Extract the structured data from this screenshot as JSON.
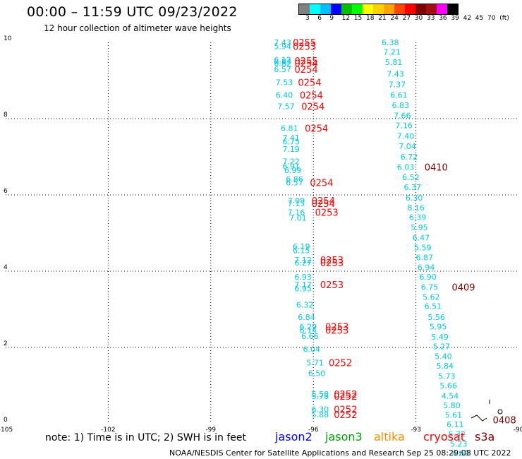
{
  "header": {
    "title": "00:00 – 11:59 UTC 09/23/2022",
    "subtitle": "12 hour collection of altimeter wave heights"
  },
  "legend": {
    "colors": [
      "#808080",
      "#00ffff",
      "#00bfff",
      "#0000ff",
      "#00c000",
      "#00ff00",
      "#ffff00",
      "#ffd000",
      "#ffa500",
      "#ff4500",
      "#ff0000",
      "#800000",
      "#a01010",
      "#ff00ff",
      "#000000"
    ],
    "labels": [
      "3",
      "6",
      "9",
      "12",
      "15",
      "18",
      "21",
      "24",
      "27",
      "30",
      "33",
      "36",
      "39",
      "42",
      "45",
      "70",
      "(ft)"
    ]
  },
  "footer": {
    "note": "note:  1) Time is in UTC;  2) SWH is in feet",
    "satellites": [
      {
        "name": "jason2",
        "color": "#0000ff"
      },
      {
        "name": "jason3",
        "color": "#00a000"
      },
      {
        "name": "altika",
        "color": "#ff8c00"
      },
      {
        "name": "cryosat",
        "color": "#ff0000"
      },
      {
        "name": "s3a",
        "color": "#800000"
      }
    ],
    "credit": "NOAA/NESDIS Center for Satellite Applications and Research    Sep 25 08:29:08 UTC 2022"
  },
  "chart_data": {
    "type": "scatter",
    "title": "00:00 – 11:59 UTC 09/23/2022",
    "xlim": [
      -105,
      -90
    ],
    "ylim": [
      0,
      10
    ],
    "x_ticks": [
      "-105",
      "-102",
      "-99",
      "-96",
      "-93",
      "-90"
    ],
    "y_ticks": [
      "0",
      "2",
      "4",
      "6",
      "8",
      "10"
    ],
    "grid": true,
    "wave_color": "#00c8e6",
    "time_color": "#ff0000",
    "time_color_dark": "#800000",
    "wave_heights": [
      {
        "x": -96.9,
        "y": 10.0,
        "v": "7.43"
      },
      {
        "x": -96.9,
        "y": 9.9,
        "v": "5.94"
      },
      {
        "x": -96.9,
        "y": 9.55,
        "v": "6.12"
      },
      {
        "x": -96.9,
        "y": 9.5,
        "v": "6.83"
      },
      {
        "x": -96.9,
        "y": 9.45,
        "v": "6.82"
      },
      {
        "x": -96.9,
        "y": 9.3,
        "v": "6.57"
      },
      {
        "x": -96.85,
        "y": 8.95,
        "v": "7.53"
      },
      {
        "x": -96.85,
        "y": 8.62,
        "v": "6.40"
      },
      {
        "x": -96.8,
        "y": 8.32,
        "v": "7.57"
      },
      {
        "x": -96.7,
        "y": 7.75,
        "v": "6.81"
      },
      {
        "x": -96.65,
        "y": 7.5,
        "v": "7.41"
      },
      {
        "x": -96.65,
        "y": 7.4,
        "v": "6.75"
      },
      {
        "x": -96.65,
        "y": 7.2,
        "v": "7.19"
      },
      {
        "x": -96.65,
        "y": 6.88,
        "v": "7.22"
      },
      {
        "x": -96.65,
        "y": 6.75,
        "v": "6.91"
      },
      {
        "x": -96.6,
        "y": 6.65,
        "v": "6.99"
      },
      {
        "x": -96.55,
        "y": 6.42,
        "v": "6.86"
      },
      {
        "x": -96.55,
        "y": 6.32,
        "v": "6.57"
      },
      {
        "x": -96.5,
        "y": 5.85,
        "v": "7.09"
      },
      {
        "x": -96.5,
        "y": 5.78,
        "v": "7.15"
      },
      {
        "x": -96.5,
        "y": 5.55,
        "v": "7.16"
      },
      {
        "x": -96.45,
        "y": 5.4,
        "v": "7.01"
      },
      {
        "x": -96.35,
        "y": 4.65,
        "v": "6.19"
      },
      {
        "x": -96.35,
        "y": 4.55,
        "v": "6.15"
      },
      {
        "x": -96.3,
        "y": 4.3,
        "v": "7.12"
      },
      {
        "x": -96.3,
        "y": 4.22,
        "v": "6.27"
      },
      {
        "x": -96.3,
        "y": 3.85,
        "v": "6.93"
      },
      {
        "x": -96.3,
        "y": 3.65,
        "v": "7.17"
      },
      {
        "x": -96.3,
        "y": 3.55,
        "v": "6.95"
      },
      {
        "x": -96.25,
        "y": 3.12,
        "v": "6.32"
      },
      {
        "x": -96.2,
        "y": 2.8,
        "v": "6.84"
      },
      {
        "x": -96.15,
        "y": 2.55,
        "v": "6.29"
      },
      {
        "x": -96.15,
        "y": 2.45,
        "v": "6.14"
      },
      {
        "x": -96.1,
        "y": 2.3,
        "v": "6.66"
      },
      {
        "x": -96.05,
        "y": 1.95,
        "v": "6.04"
      },
      {
        "x": -95.95,
        "y": 1.6,
        "v": "5.71"
      },
      {
        "x": -95.9,
        "y": 1.32,
        "v": "6.50"
      },
      {
        "x": -95.8,
        "y": 0.78,
        "v": "5.58"
      },
      {
        "x": -95.8,
        "y": 0.72,
        "v": "5.78"
      },
      {
        "x": -95.8,
        "y": 0.38,
        "v": "6.30"
      },
      {
        "x": -95.8,
        "y": 0.24,
        "v": "5.88"
      },
      {
        "x": -93.75,
        "y": 10.0,
        "v": "6.38"
      },
      {
        "x": -93.7,
        "y": 9.75,
        "v": "7.21"
      },
      {
        "x": -93.65,
        "y": 9.48,
        "v": "5.81"
      },
      {
        "x": -93.6,
        "y": 9.18,
        "v": "7.43"
      },
      {
        "x": -93.55,
        "y": 8.9,
        "v": "7.37"
      },
      {
        "x": -93.5,
        "y": 8.62,
        "v": "6.61"
      },
      {
        "x": -93.45,
        "y": 8.35,
        "v": "6.83"
      },
      {
        "x": -93.4,
        "y": 8.08,
        "v": "7.66"
      },
      {
        "x": -93.35,
        "y": 7.82,
        "v": "7.16"
      },
      {
        "x": -93.3,
        "y": 7.55,
        "v": "7.40"
      },
      {
        "x": -93.25,
        "y": 7.28,
        "v": "7.04"
      },
      {
        "x": -93.2,
        "y": 7.0,
        "v": "6.72"
      },
      {
        "x": -93.3,
        "y": 6.73,
        "v": "6.03"
      },
      {
        "x": -93.15,
        "y": 6.46,
        "v": "6.52"
      },
      {
        "x": -93.1,
        "y": 6.2,
        "v": "6.37"
      },
      {
        "x": -93.05,
        "y": 5.93,
        "v": "6.30"
      },
      {
        "x": -93.0,
        "y": 5.67,
        "v": "8.16"
      },
      {
        "x": -92.95,
        "y": 5.42,
        "v": "6.39"
      },
      {
        "x": -92.9,
        "y": 5.15,
        "v": "5.95"
      },
      {
        "x": -92.85,
        "y": 4.88,
        "v": "6.47"
      },
      {
        "x": -92.8,
        "y": 4.62,
        "v": "5.59"
      },
      {
        "x": -92.75,
        "y": 4.36,
        "v": "6.87"
      },
      {
        "x": -92.7,
        "y": 4.1,
        "v": "6.94"
      },
      {
        "x": -92.65,
        "y": 3.85,
        "v": "6.90"
      },
      {
        "x": -92.6,
        "y": 3.58,
        "v": "6.75"
      },
      {
        "x": -92.55,
        "y": 3.32,
        "v": "5.62"
      },
      {
        "x": -92.5,
        "y": 3.08,
        "v": "6.51"
      },
      {
        "x": -92.4,
        "y": 2.8,
        "v": "5.56"
      },
      {
        "x": -92.35,
        "y": 2.55,
        "v": "5.95"
      },
      {
        "x": -92.3,
        "y": 2.28,
        "v": "5.49"
      },
      {
        "x": -92.25,
        "y": 2.03,
        "v": "5.27"
      },
      {
        "x": -92.2,
        "y": 1.77,
        "v": "5.40"
      },
      {
        "x": -92.15,
        "y": 1.52,
        "v": "5.84"
      },
      {
        "x": -92.1,
        "y": 1.25,
        "v": "5.73"
      },
      {
        "x": -92.05,
        "y": 1.0,
        "v": "5.66"
      },
      {
        "x": -92.0,
        "y": 0.73,
        "v": "4.54"
      },
      {
        "x": -91.95,
        "y": 0.48,
        "v": "5.80"
      },
      {
        "x": -91.9,
        "y": 0.23,
        "v": "5.61"
      },
      {
        "x": -91.85,
        "y": -0.02,
        "v": "6.11"
      },
      {
        "x": -91.8,
        "y": -0.27,
        "v": "5.32"
      },
      {
        "x": -91.75,
        "y": -0.53,
        "v": "5.23"
      },
      {
        "x": -91.7,
        "y": -0.77,
        "v": "4.60"
      },
      {
        "x": -91.8,
        "y": -1.0,
        "v": "5.37"
      }
    ],
    "time_labels": [
      {
        "x": -96.6,
        "y": 10.0,
        "v": "0255",
        "dark": false
      },
      {
        "x": -96.6,
        "y": 9.9,
        "v": "0253",
        "dark": false
      },
      {
        "x": -96.55,
        "y": 9.52,
        "v": "0255",
        "dark": false
      },
      {
        "x": -96.55,
        "y": 9.45,
        "v": "0254",
        "dark": false
      },
      {
        "x": -96.55,
        "y": 9.3,
        "v": "0254",
        "dark": false
      },
      {
        "x": -96.45,
        "y": 8.95,
        "v": "0254",
        "dark": false
      },
      {
        "x": -96.4,
        "y": 8.62,
        "v": "0254",
        "dark": false
      },
      {
        "x": -96.35,
        "y": 8.32,
        "v": "0254",
        "dark": false
      },
      {
        "x": -96.25,
        "y": 7.75,
        "v": "0254",
        "dark": false
      },
      {
        "x": -96.1,
        "y": 6.32,
        "v": "0254",
        "dark": false
      },
      {
        "x": -96.05,
        "y": 5.85,
        "v": "0254",
        "dark": false
      },
      {
        "x": -96.05,
        "y": 5.78,
        "v": "0254",
        "dark": false
      },
      {
        "x": -95.95,
        "y": 5.55,
        "v": "0253",
        "dark": false
      },
      {
        "x": -95.8,
        "y": 4.3,
        "v": "0253",
        "dark": false
      },
      {
        "x": -95.8,
        "y": 4.22,
        "v": "0253",
        "dark": false
      },
      {
        "x": -95.8,
        "y": 3.65,
        "v": "0253",
        "dark": false
      },
      {
        "x": -95.65,
        "y": 2.55,
        "v": "0253",
        "dark": false
      },
      {
        "x": -95.65,
        "y": 2.45,
        "v": "0253",
        "dark": false
      },
      {
        "x": -95.55,
        "y": 1.6,
        "v": "0252",
        "dark": false
      },
      {
        "x": -95.4,
        "y": 0.78,
        "v": "0252",
        "dark": false
      },
      {
        "x": -95.4,
        "y": 0.72,
        "v": "0252",
        "dark": false
      },
      {
        "x": -95.4,
        "y": 0.38,
        "v": "0252",
        "dark": false
      },
      {
        "x": -95.4,
        "y": 0.24,
        "v": "0252",
        "dark": false
      },
      {
        "x": -92.75,
        "y": 6.73,
        "v": "0410",
        "dark": true
      },
      {
        "x": -91.95,
        "y": 3.58,
        "v": "0409",
        "dark": true
      },
      {
        "x": -90.75,
        "y": 0.1,
        "v": "0408",
        "dark": true
      }
    ]
  }
}
